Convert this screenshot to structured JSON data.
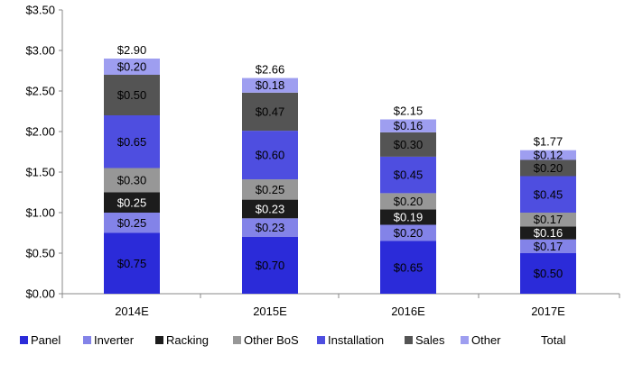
{
  "chart_data": {
    "type": "bar",
    "stacked": true,
    "categories": [
      "2014E",
      "2015E",
      "2016E",
      "2017E"
    ],
    "series": [
      {
        "name": "Panel",
        "values": [
          0.75,
          0.7,
          0.65,
          0.5
        ],
        "labels": [
          "$0.75",
          "$0.70",
          "$0.65",
          "$0.50"
        ],
        "color": "#2b2bd9",
        "label_color": "#000000"
      },
      {
        "name": "Inverter",
        "values": [
          0.25,
          0.23,
          0.2,
          0.17
        ],
        "labels": [
          "$0.25",
          "$0.23",
          "$0.20",
          "$0.17"
        ],
        "color": "#8383e8",
        "label_color": "#000000"
      },
      {
        "name": "Racking",
        "values": [
          0.25,
          0.23,
          0.19,
          0.16
        ],
        "labels": [
          "$0.25",
          "$0.23",
          "$0.19",
          "$0.16"
        ],
        "color": "#1c1c1c",
        "label_color": "#ffffff"
      },
      {
        "name": "Other BoS",
        "values": [
          0.3,
          0.25,
          0.2,
          0.17
        ],
        "labels": [
          "$0.30",
          "$0.25",
          "$0.20",
          "$0.17"
        ],
        "color": "#979797",
        "label_color": "#000000"
      },
      {
        "name": "Installation",
        "values": [
          0.65,
          0.6,
          0.45,
          0.45
        ],
        "labels": [
          "$0.65",
          "$0.60",
          "$0.45",
          "$0.45"
        ],
        "color": "#4e4ee0",
        "label_color": "#000000"
      },
      {
        "name": "Sales",
        "values": [
          0.5,
          0.47,
          0.3,
          0.2
        ],
        "labels": [
          "$0.50",
          "$0.47",
          "$0.30",
          "$0.20"
        ],
        "color": "#545454",
        "label_color": "#000000"
      },
      {
        "name": "Other",
        "values": [
          0.2,
          0.18,
          0.16,
          0.12
        ],
        "labels": [
          "$0.20",
          "$0.18",
          "$0.16",
          "$0.12"
        ],
        "color": "#9e9ef0",
        "label_color": "#000000"
      }
    ],
    "totals": {
      "name": "Total",
      "values": [
        2.9,
        2.66,
        2.15,
        1.77
      ],
      "labels": [
        "$2.90",
        "$2.66",
        "$2.15",
        "$1.77"
      ]
    },
    "ylim": [
      0,
      3.5
    ],
    "y_ticks": [
      0,
      0.5,
      1.0,
      1.5,
      2.0,
      2.5,
      3.0,
      3.5
    ],
    "y_tick_labels": [
      "$0.00",
      "$0.50",
      "$1.00",
      "$1.50",
      "$2.00",
      "$2.50",
      "$3.00",
      "$3.50"
    ],
    "title": "",
    "xlabel": "",
    "ylabel": "",
    "grid": false,
    "legend_position": "bottom"
  }
}
